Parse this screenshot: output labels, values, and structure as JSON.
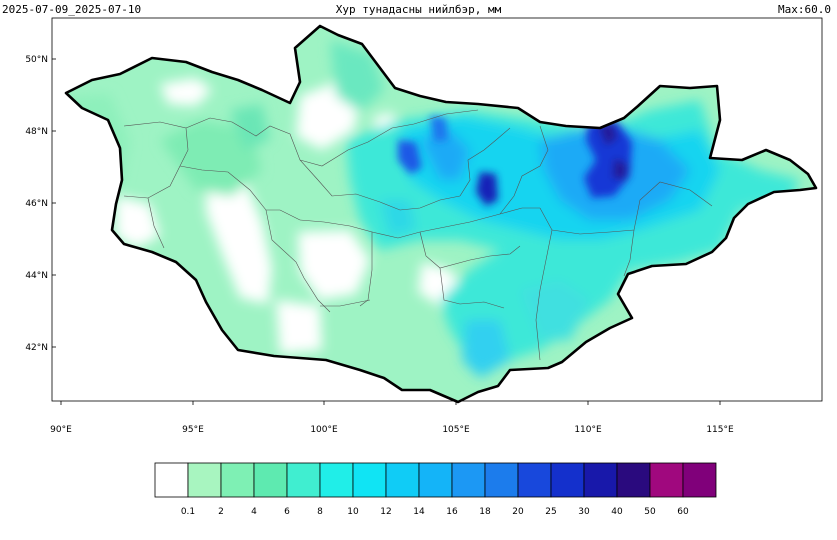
{
  "header": {
    "date_range": "2025-07-09_2025-07-10",
    "title": "Хур тунадасны нийлбэр, мм",
    "max_label": "Max:60.0"
  },
  "map": {
    "region": "Mongolia",
    "lon_ticks": [
      "90°E",
      "95°E",
      "100°E",
      "105°E",
      "110°E",
      "115°E"
    ],
    "lat_ticks": [
      "50°N",
      "48°N",
      "46°N",
      "44°N",
      "42°N"
    ]
  },
  "colorbar": {
    "labels": [
      "0.1",
      "2",
      "4",
      "6",
      "8",
      "10",
      "12",
      "14",
      "16",
      "18",
      "20",
      "25",
      "30",
      "40",
      "50",
      "60"
    ],
    "colors": [
      "#ffffff",
      "#a8f5c0",
      "#7ef0b4",
      "#5eeab0",
      "#40eed0",
      "#20eee8",
      "#10e4f4",
      "#10ccf6",
      "#14b4f8",
      "#1c98f4",
      "#1c7cec",
      "#1848dc",
      "#1430cc",
      "#1818aa",
      "#2a0a7e",
      "#a0087e",
      "#80007a"
    ]
  }
}
